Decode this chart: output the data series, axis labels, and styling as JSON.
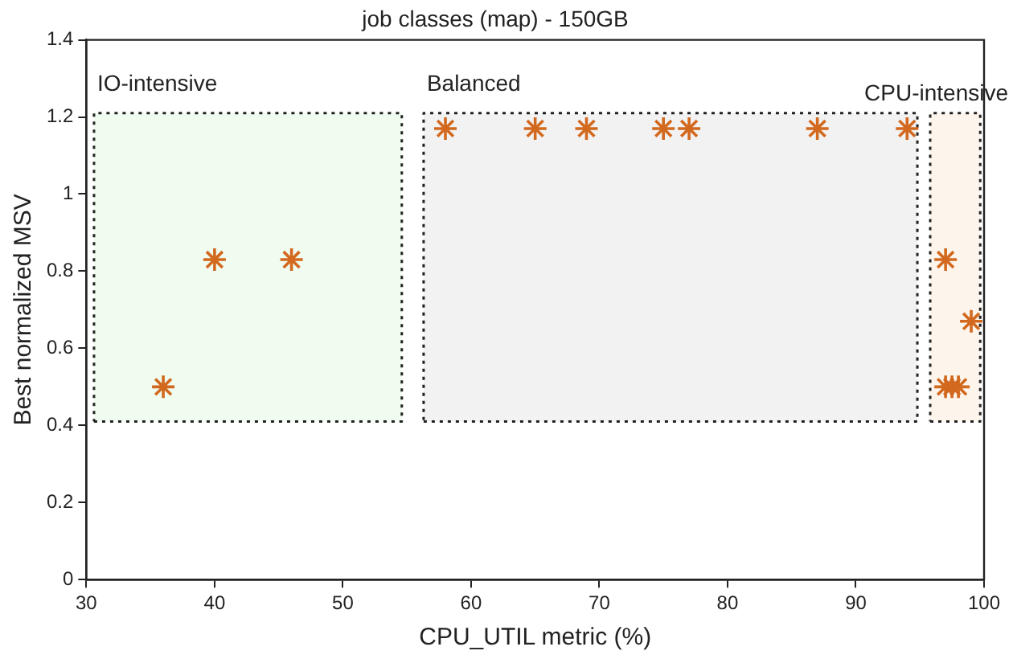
{
  "chart_data": {
    "type": "scatter",
    "title": "job classes (map) - 150GB",
    "xlabel": "CPU_UTIL metric (%)",
    "ylabel": "Best normalized MSV",
    "xlim": [
      30,
      100
    ],
    "xticks": [
      30,
      40,
      50,
      60,
      70,
      80,
      90,
      100
    ],
    "ylim": [
      0,
      1.4
    ],
    "yticks": [
      0,
      0.2,
      0.4,
      0.6,
      0.8,
      1,
      1.2,
      1.4
    ],
    "grid": false,
    "legend": false,
    "series": [
      {
        "type": "area",
        "line_style": "dotted",
        "color": "#f0fcf0",
        "x": [
          30.6,
          54.6,
          54.6,
          30.6,
          30.6
        ],
        "values": [
          0.41,
          0.41,
          1.21,
          1.21,
          0.41
        ]
      },
      {
        "type": "area",
        "line_style": "dotted",
        "color": "#f2f2f2",
        "x": [
          56.3,
          94.8,
          94.8,
          56.3,
          56.3
        ],
        "values": [
          0.41,
          0.41,
          1.21,
          1.21,
          0.41
        ]
      },
      {
        "type": "area",
        "line_style": "dotted",
        "color": "#fdf5ec",
        "x": [
          95.8,
          99.7,
          99.7,
          95.8,
          95.8
        ],
        "values": [
          0.41,
          0.41,
          1.21,
          1.21,
          0.41
        ]
      },
      {
        "marker": "cross",
        "color": "#d2691e",
        "x": [
          36,
          40,
          46,
          58,
          65,
          69,
          75,
          77,
          87,
          94,
          97,
          99,
          97,
          97.5,
          98
        ],
        "values": [
          0.5,
          0.83,
          0.83,
          1.17,
          1.17,
          1.17,
          1.17,
          1.17,
          1.17,
          1.17,
          0.83,
          0.67,
          0.5,
          0.5,
          0.5
        ]
      }
    ],
    "annotations": [
      "IO-intensive",
      "Balanced",
      "CPU-intensive"
    ]
  }
}
